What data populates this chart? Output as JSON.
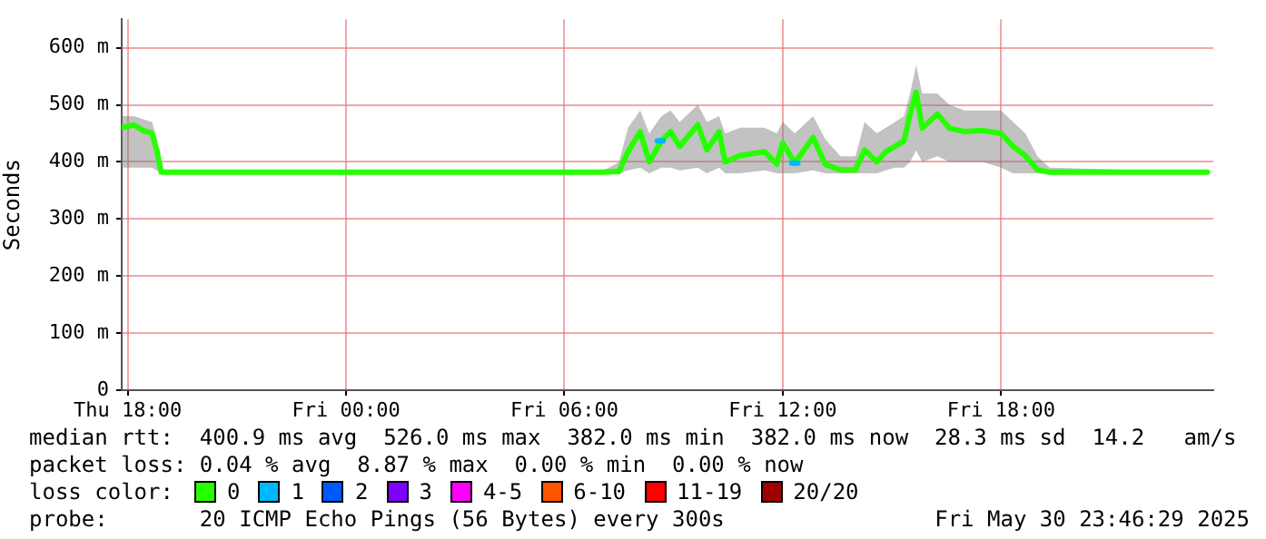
{
  "chart_data": {
    "type": "line",
    "ylabel": "Seconds",
    "legend_title": "loss color:",
    "legend": "bottom",
    "grid": true,
    "marker": "none",
    "line_style": "solid",
    "xlim": [
      "2025-05-29T17:50",
      "2025-05-30T23:50"
    ],
    "xticks": [
      {
        "value": "2025-05-29T18:00",
        "label": "Thu 18:00"
      },
      {
        "value": "2025-05-30T00:00",
        "label": "Fri 00:00"
      },
      {
        "value": "2025-05-30T06:00",
        "label": "Fri 06:00"
      },
      {
        "value": "2025-05-30T12:00",
        "label": "Fri 12:00"
      },
      {
        "value": "2025-05-30T18:00",
        "label": "Fri 18:00"
      }
    ],
    "ylim": [
      0,
      650
    ],
    "yticks": [
      {
        "value": 0,
        "label": "0"
      },
      {
        "value": 100,
        "label": "100 m"
      },
      {
        "value": 200,
        "label": "200 m"
      },
      {
        "value": 300,
        "label": "300 m"
      },
      {
        "value": 400,
        "label": "400 m"
      },
      {
        "value": 500,
        "label": "500 m"
      },
      {
        "value": 600,
        "label": "600 m"
      }
    ],
    "series": [
      {
        "name": "0",
        "color": "#26ff00",
        "x": [
          "2025-05-29T17:50",
          "2025-05-29T18:10",
          "2025-05-29T18:25",
          "2025-05-29T18:40",
          "2025-05-29T18:48",
          "2025-05-29T18:55",
          "2025-05-30T07:00",
          "2025-05-30T07:30",
          "2025-05-30T07:45",
          "2025-05-30T08:05",
          "2025-05-30T08:20",
          "2025-05-30T08:40",
          "2025-05-30T08:55",
          "2025-05-30T09:10",
          "2025-05-30T09:40",
          "2025-05-30T09:55",
          "2025-05-30T10:15",
          "2025-05-30T10:25",
          "2025-05-30T10:50",
          "2025-05-30T11:30",
          "2025-05-30T11:50",
          "2025-05-30T12:00",
          "2025-05-30T12:20",
          "2025-05-30T12:50",
          "2025-05-30T13:10",
          "2025-05-30T13:35",
          "2025-05-30T14:00",
          "2025-05-30T14:15",
          "2025-05-30T14:35",
          "2025-05-30T14:50",
          "2025-05-30T15:05",
          "2025-05-30T15:20",
          "2025-05-30T15:30",
          "2025-05-30T15:40",
          "2025-05-30T15:50",
          "2025-05-30T16:15",
          "2025-05-30T16:35",
          "2025-05-30T17:00",
          "2025-05-30T17:30",
          "2025-05-30T18:00",
          "2025-05-30T18:20",
          "2025-05-30T18:40",
          "2025-05-30T19:00",
          "2025-05-30T19:20",
          "2025-05-30T23:40"
        ],
        "values": [
          460,
          465,
          455,
          450,
          420,
          382,
          382,
          383,
          418,
          453,
          400,
          437,
          453,
          427,
          465,
          421,
          453,
          400,
          411,
          418,
          396,
          433,
          398,
          443,
          396,
          386,
          386,
          421,
          400,
          418,
          427,
          437,
          484,
          522,
          459,
          484,
          459,
          453,
          455,
          450,
          427,
          411,
          386,
          382,
          382
        ],
        "lower": [
          390,
          390,
          390,
          390,
          385,
          380,
          380,
          380,
          385,
          390,
          380,
          390,
          390,
          385,
          390,
          380,
          390,
          380,
          380,
          385,
          380,
          380,
          380,
          385,
          380,
          380,
          380,
          380,
          380,
          385,
          390,
          390,
          400,
          420,
          400,
          410,
          400,
          400,
          400,
          390,
          380,
          380,
          380,
          380,
          380
        ],
        "upper": [
          480,
          480,
          475,
          470,
          440,
          382,
          382,
          400,
          460,
          490,
          450,
          480,
          490,
          470,
          500,
          470,
          480,
          450,
          460,
          460,
          450,
          470,
          450,
          480,
          440,
          410,
          410,
          470,
          450,
          460,
          470,
          480,
          520,
          570,
          520,
          520,
          500,
          490,
          490,
          490,
          470,
          450,
          410,
          390,
          382
        ]
      },
      {
        "name": "1",
        "color": "#00b8ff",
        "x": [
          "2025-05-30T08:33",
          "2025-05-30T08:43",
          "2025-05-30T10:00",
          "2025-05-30T12:15",
          "2025-05-30T12:25"
        ],
        "values": [
          437,
          437,
          null,
          398,
          398
        ]
      },
      {
        "name": "2",
        "color": "#0059ff"
      },
      {
        "name": "3",
        "color": "#7e00ff"
      },
      {
        "name": "4-5",
        "color": "#ff00ff"
      },
      {
        "name": "6-10",
        "color": "#ff5500"
      },
      {
        "name": "11-19",
        "color": "#ff0000"
      },
      {
        "name": "20/20",
        "color": "#a10000"
      }
    ],
    "annotations": [
      "median rtt:  400.9 ms avg  526.0 ms max  382.0 ms min  382.0 ms now  28.3 ms sd  14.2   am/s",
      "packet loss: 0.04 % avg  8.87 % max  0.00 % min  0.00 % now",
      "probe:       20 ICMP Echo Pings (56 Bytes) every 300s",
      "Fri May 30 23:46:29 2025"
    ]
  }
}
